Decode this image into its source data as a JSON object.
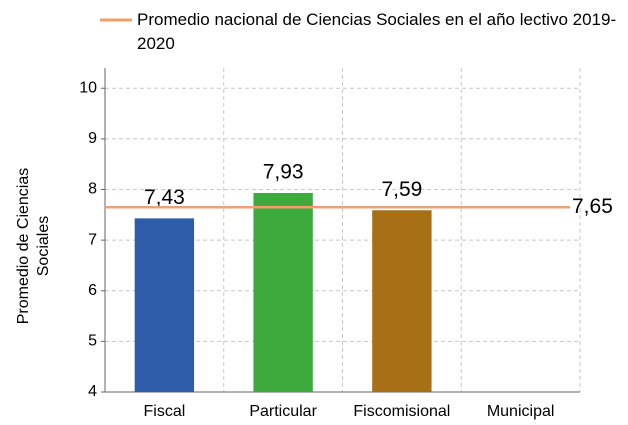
{
  "chart_data": {
    "type": "bar",
    "categories": [
      "Fiscal",
      "Particular",
      "Fiscomisional",
      "Municipal"
    ],
    "values": [
      7.43,
      7.93,
      7.59,
      null
    ],
    "value_labels": [
      "7,43",
      "7,93",
      "7,59",
      null
    ],
    "colors": [
      "#2e5ca8",
      "#3daa3d",
      "#a87016",
      "#888888"
    ],
    "ylabel": "Promedio de Ciencias Sociales",
    "ylim": [
      4,
      10.4
    ],
    "yticks": [
      4,
      5,
      6,
      7,
      8,
      9,
      10
    ],
    "grid": true,
    "reference_line": {
      "name": "Promedio nacional de Ciencias Sociales en el año lectivo 2019-2020",
      "value": 7.65,
      "label": "7,65",
      "color": "#f4a06a"
    }
  }
}
